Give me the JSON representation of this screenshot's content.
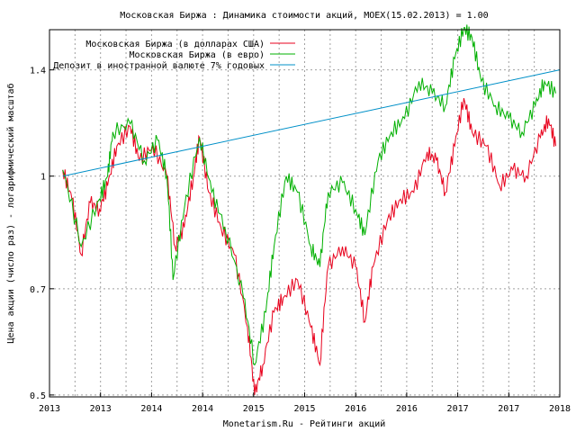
{
  "chart_data": {
    "type": "line",
    "title": "Московская Биржа : Динамика стоимости акций, MOEX(15.02.2013) = 1.00",
    "xlabel": "Monetarism.Ru - Рейтинги акций",
    "ylabel": "Цена акции (число раз) - логарифмический масштаб",
    "yscale": "log",
    "ylim": [
      0.497,
      1.59
    ],
    "xlim": [
      2013.0,
      2018.0
    ],
    "yticks": [
      0.5,
      0.7,
      1,
      1.4
    ],
    "ytick_labels": [
      "0.5",
      "0.7",
      "1",
      "1.4"
    ],
    "xticks": [
      2013.0,
      2013.5,
      2014.0,
      2014.5,
      2015.0,
      2015.5,
      2016.0,
      2016.5,
      2017.0,
      2017.5,
      2018.0
    ],
    "xtick_labels": [
      "2013",
      "2013",
      "2014",
      "2014",
      "2015",
      "2015",
      "2016",
      "2016",
      "2017",
      "2017",
      "2018"
    ],
    "grid": true,
    "legend_position": "top-left",
    "series": [
      {
        "name": "Московская Биржа (в долларах США)",
        "color": "#e8001c",
        "x": [
          2013.13,
          2013.22,
          2013.31,
          2013.4,
          2013.49,
          2013.57,
          2013.66,
          2013.79,
          2013.88,
          2014.01,
          2014.15,
          2014.23,
          2014.32,
          2014.41,
          2014.47,
          2014.56,
          2014.68,
          2014.81,
          2014.94,
          2015.01,
          2015.09,
          2015.2,
          2015.29,
          2015.43,
          2015.56,
          2015.65,
          2015.73,
          2015.87,
          2016.0,
          2016.09,
          2016.17,
          2016.31,
          2016.44,
          2016.57,
          2016.7,
          2016.79,
          2016.88,
          2016.97,
          2017.06,
          2017.14,
          2017.28,
          2017.41,
          2017.54,
          2017.67,
          2017.81,
          2017.89,
          2017.96
        ],
        "values": [
          1.02,
          0.93,
          0.78,
          0.92,
          0.9,
          0.97,
          1.1,
          1.17,
          1.05,
          1.1,
          1.0,
          0.8,
          0.85,
          1.0,
          1.13,
          0.95,
          0.85,
          0.78,
          0.62,
          0.5,
          0.55,
          0.65,
          0.68,
          0.72,
          0.62,
          0.55,
          0.75,
          0.8,
          0.75,
          0.63,
          0.75,
          0.87,
          0.93,
          0.95,
          1.08,
          1.05,
          0.95,
          1.1,
          1.28,
          1.15,
          1.1,
          0.97,
          1.02,
          1.0,
          1.13,
          1.2,
          1.1
        ]
      },
      {
        "name": "Московская Биржа (в евро)",
        "color": "#00b000",
        "x": [
          2013.13,
          2013.31,
          2013.49,
          2013.57,
          2013.62,
          2013.79,
          2013.93,
          2014.06,
          2014.15,
          2014.21,
          2014.32,
          2014.47,
          2014.59,
          2014.72,
          2014.9,
          2015.01,
          2015.12,
          2015.2,
          2015.32,
          2015.43,
          2015.56,
          2015.65,
          2015.73,
          2015.87,
          2016.0,
          2016.09,
          2016.22,
          2016.35,
          2016.48,
          2016.62,
          2016.75,
          2016.88,
          2016.97,
          2017.06,
          2017.14,
          2017.23,
          2017.37,
          2017.5,
          2017.63,
          2017.76,
          2017.85,
          2017.96
        ],
        "values": [
          1.02,
          0.8,
          0.93,
          1.0,
          1.15,
          1.18,
          1.05,
          1.12,
          1.0,
          0.72,
          0.9,
          1.13,
          0.95,
          0.85,
          0.68,
          0.55,
          0.65,
          0.8,
          1.0,
          0.95,
          0.8,
          0.75,
          0.95,
          0.98,
          0.9,
          0.83,
          1.05,
          1.15,
          1.2,
          1.35,
          1.3,
          1.25,
          1.45,
          1.6,
          1.55,
          1.35,
          1.25,
          1.2,
          1.15,
          1.25,
          1.35,
          1.3
        ]
      },
      {
        "name": "Депозит в иностранной валюте 7% годовых",
        "color": "#0090c8",
        "x": [
          2013.13,
          2018.0
        ],
        "values": [
          1.0,
          1.4
        ]
      }
    ]
  }
}
